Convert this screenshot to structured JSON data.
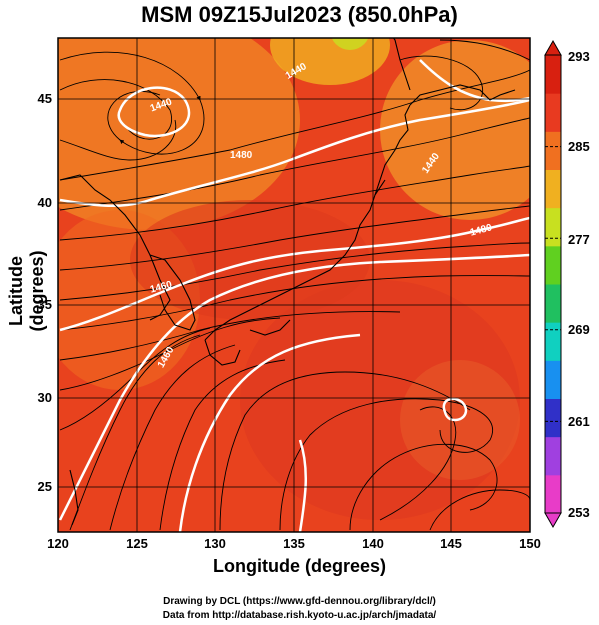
{
  "title": "MSM 09Z15Jul2023 (850.0hPa)",
  "axes": {
    "xlabel": "Longitude (degrees)",
    "ylabel": "Latitude  (degrees)",
    "x_ticks": [
      "120",
      "125",
      "130",
      "135",
      "140",
      "145",
      "150"
    ],
    "y_ticks": [
      "45",
      "40",
      "35",
      "30",
      "25"
    ]
  },
  "colorbar": {
    "ticks": [
      "293",
      "285",
      "277",
      "269",
      "261",
      "253"
    ],
    "min": 253,
    "max": 293,
    "colors": [
      "#e83cc8",
      "#a040e0",
      "#3030c8",
      "#1890f0",
      "#10d0c0",
      "#20c060",
      "#60d020",
      "#c8e020",
      "#f0b020",
      "#f07020",
      "#e83a20",
      "#d82010"
    ]
  },
  "contour_labels": [
    "1440",
    "1440",
    "1460",
    "1440",
    "1460",
    "1480",
    "1480"
  ],
  "credits": {
    "line1": "Drawing by DCL (https://www.gfd-dennou.org/library/dcl/)",
    "line2": "Data from http://database.rish.kyoto-u.ac.jp/arch/jmadata/"
  },
  "chart_data": {
    "type": "heatmap",
    "title": "MSM 09Z15Jul2023 (850.0hPa)",
    "xlabel": "Longitude (degrees)",
    "ylabel": "Latitude  (degrees)",
    "xlim": [
      120,
      150
    ],
    "ylim": [
      22.4,
      47.6
    ],
    "value_range": [
      253,
      293
    ],
    "overlays": [
      "temperature shading",
      "geopotential height contours",
      "streamlines",
      "coastlines",
      "grid"
    ],
    "contour_values": [
      1440,
      1460,
      1480
    ],
    "grid": true
  }
}
